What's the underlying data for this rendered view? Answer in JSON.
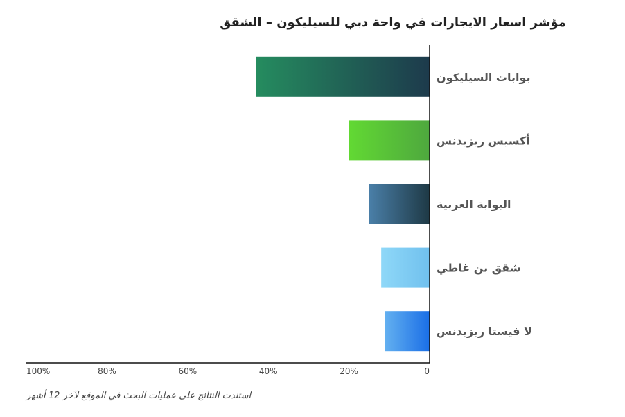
{
  "title": "مؤشر اسعار الايجارات في واحة دبي للسيليكون – الشقق",
  "footnote": "استندت النتائج على عمليات البحث في الموقع لآخر 12 أشهر",
  "chart_data": {
    "type": "bar",
    "orientation": "horizontal",
    "direction": "right-to-left",
    "categories": [
      "بوابات السيليكون",
      "أكسيس ريزيدنس",
      "البوابة العربية",
      "شقق بن غاطي",
      "لا فيستا ريزيدنس"
    ],
    "values": [
      43,
      20,
      15,
      12,
      11
    ],
    "unit": "%",
    "xlim": [
      0,
      100
    ],
    "xticks": [
      "0",
      "20%",
      "40%",
      "60%",
      "80%",
      "100%"
    ],
    "xtick_values": [
      0,
      20,
      40,
      60,
      80,
      100
    ],
    "colors": [
      [
        "#1d3a4c",
        "#258c5f"
      ],
      [
        "#4ea83e",
        "#62d933"
      ],
      [
        "#1e3945",
        "#4a7fa8"
      ],
      [
        "#70c0ee",
        "#8fd8f8"
      ],
      [
        "#1a6ee6",
        "#63b0f0"
      ]
    ]
  }
}
